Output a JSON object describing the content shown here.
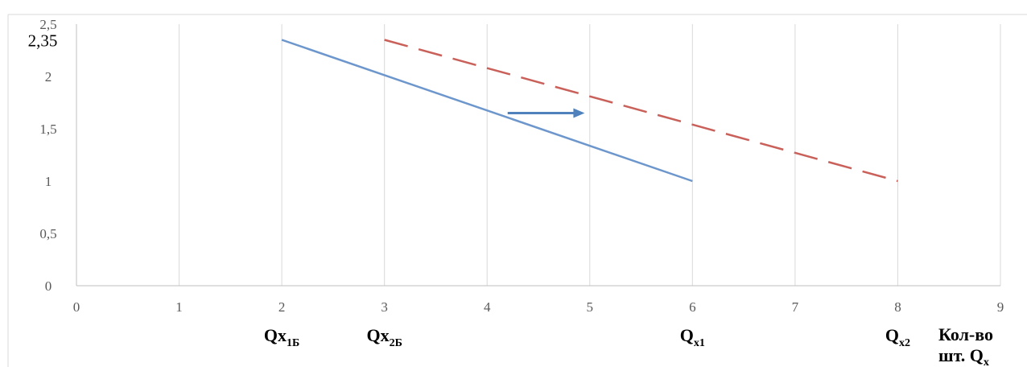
{
  "chart_data": {
    "type": "line",
    "xlim": [
      0,
      9
    ],
    "ylim": [
      0,
      2.5
    ],
    "xticks": [
      0,
      1,
      2,
      3,
      4,
      5,
      6,
      7,
      8,
      9
    ],
    "yticks": [
      0,
      0.5,
      1,
      1.5,
      2,
      2.5
    ],
    "xtick_labels": [
      "0",
      "1",
      "2",
      "3",
      "4",
      "5",
      "6",
      "7",
      "8",
      "9"
    ],
    "ytick_labels": [
      "0",
      "0,5",
      "1",
      "1,5",
      "2",
      "2,5"
    ],
    "extra_ytick": {
      "value": 2.35,
      "label": "2,35"
    },
    "grid": {
      "vertical": true,
      "horizontal": false
    },
    "series": [
      {
        "style": "solid",
        "color": "#6d97cc",
        "points": [
          [
            2,
            2.35
          ],
          [
            6,
            1
          ]
        ]
      },
      {
        "style": "dashed",
        "color": "#c9605a",
        "points": [
          [
            3,
            2.35
          ],
          [
            8,
            1
          ]
        ]
      }
    ],
    "shift_arrow": {
      "color": "#4f81bd",
      "from": [
        4.2,
        1.65
      ],
      "to": [
        4.95,
        1.65
      ]
    },
    "q_labels": [
      {
        "x": 2,
        "main": "Qx",
        "sub": "1Б"
      },
      {
        "x": 3,
        "main": "Qx",
        "sub": "2Б"
      },
      {
        "x": 6,
        "main": "Q",
        "sub": "x1"
      },
      {
        "x": 8,
        "main": "Q",
        "sub": "x2"
      }
    ],
    "xlabel_line1": "Кол-во",
    "xlabel_line2_main": "шт. Q",
    "xlabel_line2_sub": "x"
  }
}
